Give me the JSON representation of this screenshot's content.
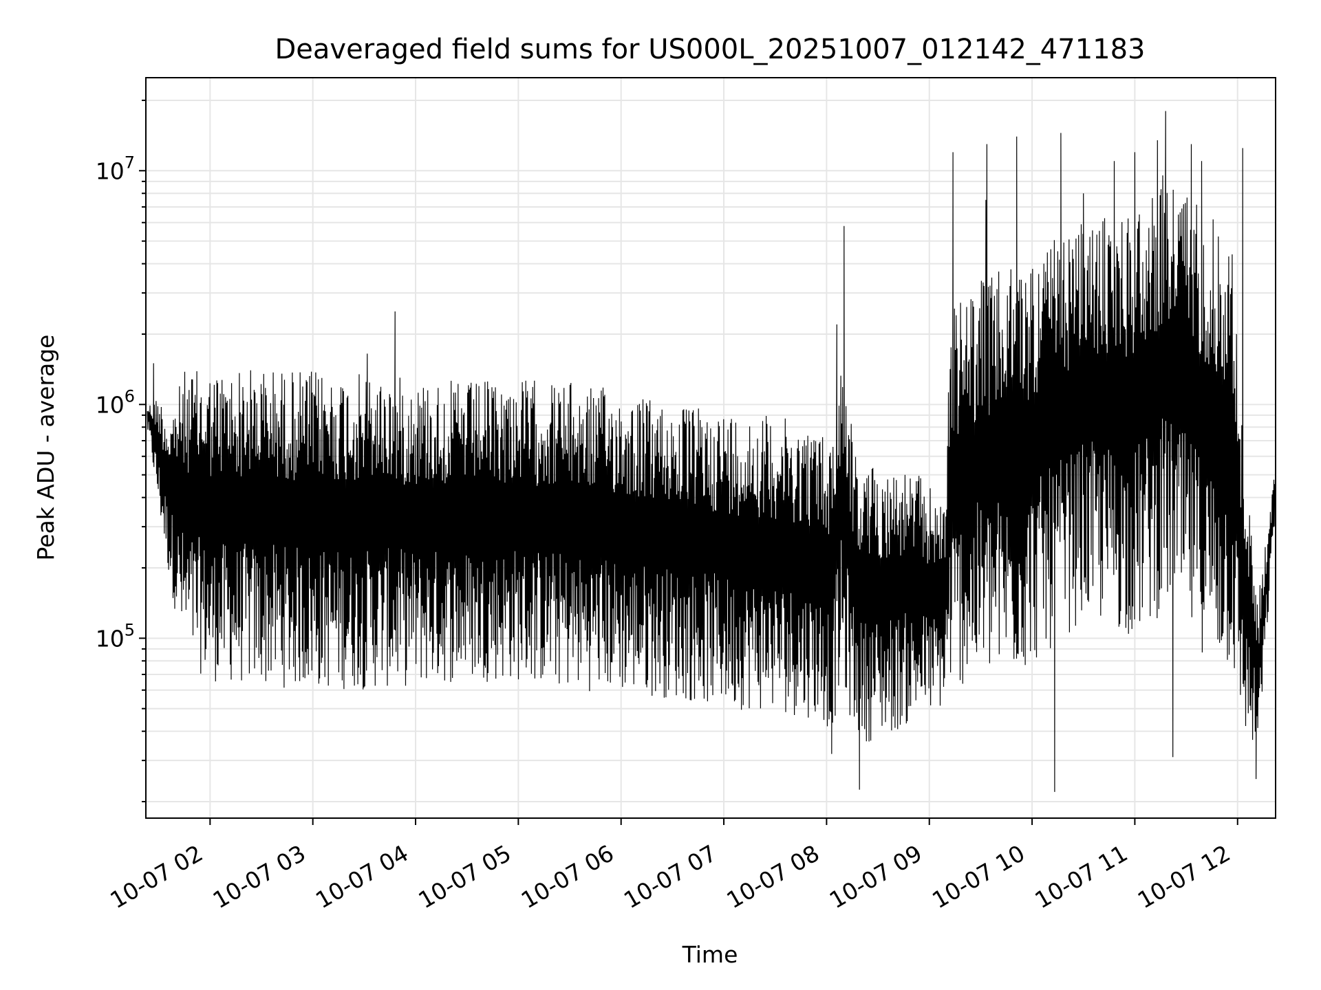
{
  "chart_data": {
    "type": "line",
    "title": "Deaveraged field sums for US000L_20251007_012142_471183",
    "xlabel": "Time",
    "ylabel": "Peak ADU - average",
    "yscale": "log",
    "ylim": [
      17000,
      25000000
    ],
    "xlim_hours": [
      1.375,
      12.37
    ],
    "grid": true,
    "x_ticks": [
      {
        "hour": 2,
        "label": "10-07 02"
      },
      {
        "hour": 3,
        "label": "10-07 03"
      },
      {
        "hour": 4,
        "label": "10-07 04"
      },
      {
        "hour": 5,
        "label": "10-07 05"
      },
      {
        "hour": 6,
        "label": "10-07 06"
      },
      {
        "hour": 7,
        "label": "10-07 07"
      },
      {
        "hour": 8,
        "label": "10-07 08"
      },
      {
        "hour": 9,
        "label": "10-07 09"
      },
      {
        "hour": 10,
        "label": "10-07 10"
      },
      {
        "hour": 11,
        "label": "10-07 11"
      },
      {
        "hour": 12,
        "label": "10-07 12"
      }
    ],
    "y_ticks": [
      {
        "value": 100000,
        "base": "10",
        "exp": "5"
      },
      {
        "value": 1000000,
        "base": "10",
        "exp": "6"
      },
      {
        "value": 10000000,
        "base": "10",
        "exp": "7"
      }
    ],
    "series": [
      {
        "envelope": [
          {
            "hour": 1.4,
            "high": 1000000,
            "low": 750000
          },
          {
            "hour": 1.5,
            "high": 1100000,
            "low": 350000
          },
          {
            "hour": 1.6,
            "high": 900000,
            "low": 180000
          },
          {
            "hour": 1.75,
            "high": 1400000,
            "low": 80000
          },
          {
            "hour": 2.0,
            "high": 1400000,
            "low": 65000
          },
          {
            "hour": 2.5,
            "high": 1450000,
            "low": 62000
          },
          {
            "hour": 3.0,
            "high": 1400000,
            "low": 60000
          },
          {
            "hour": 3.5,
            "high": 1350000,
            "low": 60000
          },
          {
            "hour": 4.0,
            "high": 1300000,
            "low": 62000
          },
          {
            "hour": 4.5,
            "high": 1250000,
            "low": 65000
          },
          {
            "hour": 5.0,
            "high": 1300000,
            "low": 65000
          },
          {
            "hour": 5.5,
            "high": 1250000,
            "low": 60000
          },
          {
            "hour": 6.0,
            "high": 1150000,
            "low": 58000
          },
          {
            "hour": 6.5,
            "high": 1000000,
            "low": 55000
          },
          {
            "hour": 7.0,
            "high": 950000,
            "low": 50000
          },
          {
            "hour": 7.5,
            "high": 900000,
            "low": 48000
          },
          {
            "hour": 7.9,
            "high": 800000,
            "low": 45000
          },
          {
            "hour": 8.05,
            "high": 700000,
            "low": 40000
          },
          {
            "hour": 8.15,
            "high": 1800000,
            "low": 60000
          },
          {
            "hour": 8.3,
            "high": 550000,
            "low": 35000
          },
          {
            "hour": 8.6,
            "high": 550000,
            "low": 38000
          },
          {
            "hour": 8.9,
            "high": 500000,
            "low": 45000
          },
          {
            "hour": 9.15,
            "high": 380000,
            "low": 50000
          },
          {
            "hour": 9.2,
            "high": 2500000,
            "low": 60000
          },
          {
            "hour": 9.5,
            "high": 3500000,
            "low": 65000
          },
          {
            "hour": 9.9,
            "high": 4000000,
            "low": 70000
          },
          {
            "hour": 10.2,
            "high": 5000000,
            "low": 90000
          },
          {
            "hour": 10.5,
            "high": 6000000,
            "low": 120000
          },
          {
            "hour": 11.0,
            "high": 7000000,
            "low": 100000
          },
          {
            "hour": 11.3,
            "high": 10000000,
            "low": 130000
          },
          {
            "hour": 11.6,
            "high": 8000000,
            "low": 90000
          },
          {
            "hour": 11.95,
            "high": 5000000,
            "low": 70000
          },
          {
            "hour": 12.05,
            "high": 700000,
            "low": 40000
          },
          {
            "hour": 12.2,
            "high": 150000,
            "low": 30000
          },
          {
            "hour": 12.37,
            "high": 550000,
            "low": 350000
          }
        ],
        "spikes": [
          {
            "hour": 1.45,
            "value": 1500000
          },
          {
            "hour": 3.53,
            "value": 1650000
          },
          {
            "hour": 3.8,
            "value": 2500000
          },
          {
            "hour": 8.1,
            "value": 2200000
          },
          {
            "hour": 8.17,
            "value": 5800000
          },
          {
            "hour": 9.23,
            "value": 12000000
          },
          {
            "hour": 9.55,
            "value": 7500000
          },
          {
            "hour": 9.56,
            "value": 13000000
          },
          {
            "hour": 9.85,
            "value": 14000000
          },
          {
            "hour": 10.28,
            "value": 14500000
          },
          {
            "hour": 10.5,
            "value": 8000000
          },
          {
            "hour": 10.8,
            "value": 11000000
          },
          {
            "hour": 11.0,
            "value": 12000000
          },
          {
            "hour": 11.22,
            "value": 13500000
          },
          {
            "hour": 11.3,
            "value": 18000000
          },
          {
            "hour": 11.55,
            "value": 13000000
          },
          {
            "hour": 11.65,
            "value": 11000000
          },
          {
            "hour": 12.05,
            "value": 12500000
          },
          {
            "hour": 8.05,
            "value": 32000
          },
          {
            "hour": 8.32,
            "value": 22500
          },
          {
            "hour": 10.22,
            "value": 22000
          },
          {
            "hour": 11.37,
            "value": 31000
          },
          {
            "hour": 12.18,
            "value": 25000
          }
        ]
      }
    ]
  }
}
